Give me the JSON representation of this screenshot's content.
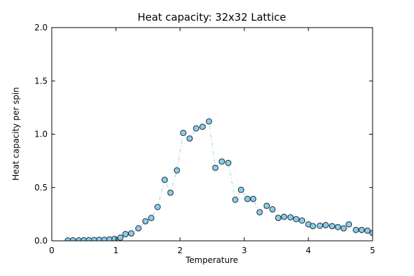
{
  "chart_data": {
    "type": "scatter",
    "title": "Heat capacity: 32x32 Lattice",
    "xlabel": "Temperature",
    "ylabel": "Heat capacity per spin",
    "xlim": [
      0,
      5
    ],
    "ylim": [
      0,
      2.0
    ],
    "xticks": [
      "0",
      "1",
      "2",
      "3",
      "4",
      "5"
    ],
    "yticks": [
      "0.0",
      "0.5",
      "1.0",
      "1.5",
      "2.0"
    ],
    "grid": false,
    "legend": null,
    "line_style": "dash-dot",
    "marker": "circle",
    "colors": {
      "line": "#add8e6",
      "marker_fill": "#87ceeb",
      "marker_edge": "#222831",
      "spine": "#000000",
      "text": "#000000",
      "background": "#ffffff"
    },
    "x": [
      0.25,
      0.33,
      0.42,
      0.5,
      0.58,
      0.66,
      0.74,
      0.82,
      0.9,
      0.98,
      1.07,
      1.15,
      1.24,
      1.35,
      1.46,
      1.55,
      1.65,
      1.76,
      1.85,
      1.95,
      2.05,
      2.15,
      2.25,
      2.35,
      2.45,
      2.55,
      2.65,
      2.75,
      2.86,
      2.95,
      3.05,
      3.14,
      3.24,
      3.35,
      3.44,
      3.53,
      3.62,
      3.72,
      3.81,
      3.9,
      4.0,
      4.07,
      4.18,
      4.27,
      4.37,
      4.46,
      4.55,
      4.63,
      4.74,
      4.83,
      4.92,
      5.0
    ],
    "y": [
      0.003,
      0.004,
      0.004,
      0.005,
      0.006,
      0.007,
      0.009,
      0.01,
      0.013,
      0.018,
      0.03,
      0.063,
      0.069,
      0.117,
      0.183,
      0.214,
      0.317,
      0.572,
      0.451,
      0.66,
      1.012,
      0.96,
      1.055,
      1.07,
      1.12,
      0.685,
      0.744,
      0.731,
      0.385,
      0.478,
      0.393,
      0.393,
      0.268,
      0.328,
      0.295,
      0.215,
      0.225,
      0.22,
      0.203,
      0.19,
      0.155,
      0.138,
      0.142,
      0.147,
      0.138,
      0.129,
      0.117,
      0.155,
      0.102,
      0.102,
      0.095,
      0.073
    ]
  }
}
